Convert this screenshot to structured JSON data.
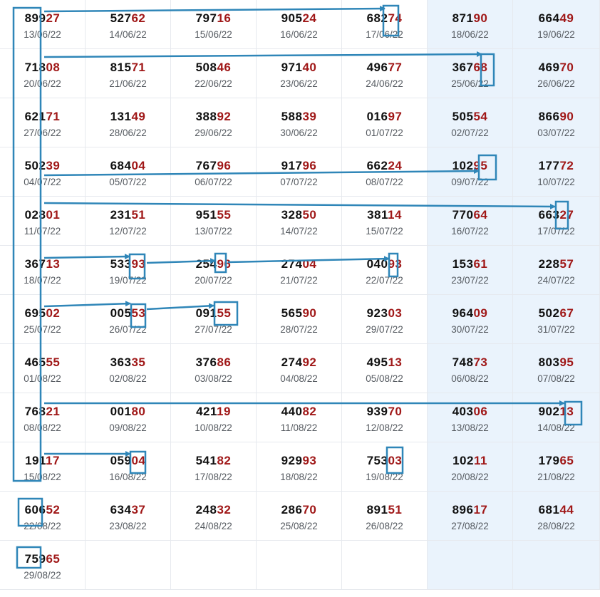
{
  "colors": {
    "digit_dark": "#111111",
    "digit_red": "#a01818",
    "date": "#555a60",
    "weekend_bg": "#eaf3fc",
    "marker": "#2f86b8"
  },
  "rows": [
    [
      [
        "899",
        "27",
        "13/06/22"
      ],
      [
        "527",
        "62",
        "14/06/22"
      ],
      [
        "797",
        "16",
        "15/06/22"
      ],
      [
        "905",
        "24",
        "16/06/22"
      ],
      [
        "682",
        "74",
        "17/06/22"
      ],
      [
        "871",
        "90",
        "18/06/22"
      ],
      [
        "664",
        "49",
        "19/06/22"
      ]
    ],
    [
      [
        "718",
        "08",
        "20/06/22"
      ],
      [
        "815",
        "71",
        "21/06/22"
      ],
      [
        "508",
        "46",
        "22/06/22"
      ],
      [
        "971",
        "40",
        "23/06/22"
      ],
      [
        "496",
        "77",
        "24/06/22"
      ],
      [
        "367",
        "68",
        "25/06/22"
      ],
      [
        "469",
        "70",
        "26/06/22"
      ]
    ],
    [
      [
        "621",
        "71",
        "27/06/22"
      ],
      [
        "131",
        "49",
        "28/06/22"
      ],
      [
        "388",
        "92",
        "29/06/22"
      ],
      [
        "588",
        "39",
        "30/06/22"
      ],
      [
        "016",
        "97",
        "01/07/22"
      ],
      [
        "505",
        "54",
        "02/07/22"
      ],
      [
        "866",
        "90",
        "03/07/22"
      ]
    ],
    [
      [
        "502",
        "39",
        "04/07/22"
      ],
      [
        "684",
        "04",
        "05/07/22"
      ],
      [
        "767",
        "96",
        "06/07/22"
      ],
      [
        "917",
        "96",
        "07/07/22"
      ],
      [
        "662",
        "24",
        "08/07/22"
      ],
      [
        "102",
        "95",
        "09/07/22"
      ],
      [
        "177",
        "72",
        "10/07/22"
      ]
    ],
    [
      [
        "028",
        "01",
        "11/07/22"
      ],
      [
        "231",
        "51",
        "12/07/22"
      ],
      [
        "951",
        "55",
        "13/07/22"
      ],
      [
        "328",
        "50",
        "14/07/22"
      ],
      [
        "381",
        "14",
        "15/07/22"
      ],
      [
        "770",
        "64",
        "16/07/22"
      ],
      [
        "663",
        "27",
        "17/07/22"
      ]
    ],
    [
      [
        "367",
        "13",
        "18/07/22"
      ],
      [
        "533",
        "93",
        "19/07/22"
      ],
      [
        "254",
        "96",
        "20/07/22"
      ],
      [
        "274",
        "04",
        "21/07/22"
      ],
      [
        "040",
        "93",
        "22/07/22"
      ],
      [
        "153",
        "61",
        "23/07/22"
      ],
      [
        "228",
        "57",
        "24/07/22"
      ]
    ],
    [
      [
        "695",
        "02",
        "25/07/22"
      ],
      [
        "005",
        "53",
        "26/07/22"
      ],
      [
        "091",
        "55",
        "27/07/22"
      ],
      [
        "565",
        "90",
        "28/07/22"
      ],
      [
        "923",
        "03",
        "29/07/22"
      ],
      [
        "964",
        "09",
        "30/07/22"
      ],
      [
        "502",
        "67",
        "31/07/22"
      ]
    ],
    [
      [
        "465",
        "55",
        "01/08/22"
      ],
      [
        "363",
        "35",
        "02/08/22"
      ],
      [
        "376",
        "86",
        "03/08/22"
      ],
      [
        "274",
        "92",
        "04/08/22"
      ],
      [
        "495",
        "13",
        "05/08/22"
      ],
      [
        "748",
        "73",
        "06/08/22"
      ],
      [
        "803",
        "95",
        "07/08/22"
      ]
    ],
    [
      [
        "768",
        "21",
        "08/08/22"
      ],
      [
        "001",
        "80",
        "09/08/22"
      ],
      [
        "421",
        "19",
        "10/08/22"
      ],
      [
        "440",
        "82",
        "11/08/22"
      ],
      [
        "939",
        "70",
        "12/08/22"
      ],
      [
        "403",
        "06",
        "13/08/22"
      ],
      [
        "902",
        "13",
        "14/08/22"
      ]
    ],
    [
      [
        "191",
        "17",
        "15/08/22"
      ],
      [
        "059",
        "04",
        "16/08/22"
      ],
      [
        "541",
        "82",
        "17/08/22"
      ],
      [
        "929",
        "93",
        "18/08/22"
      ],
      [
        "753",
        "03",
        "19/08/22"
      ],
      [
        "102",
        "11",
        "20/08/22"
      ],
      [
        "179",
        "65",
        "21/08/22"
      ]
    ],
    [
      [
        "606",
        "52",
        "22/08/22"
      ],
      [
        "634",
        "37",
        "23/08/22"
      ],
      [
        "248",
        "32",
        "24/08/22"
      ],
      [
        "286",
        "70",
        "25/08/22"
      ],
      [
        "891",
        "51",
        "26/08/22"
      ],
      [
        "896",
        "17",
        "27/08/22"
      ],
      [
        "681",
        "44",
        "28/08/22"
      ]
    ],
    [
      [
        "759",
        "65",
        "29/08/22"
      ]
    ]
  ]
}
